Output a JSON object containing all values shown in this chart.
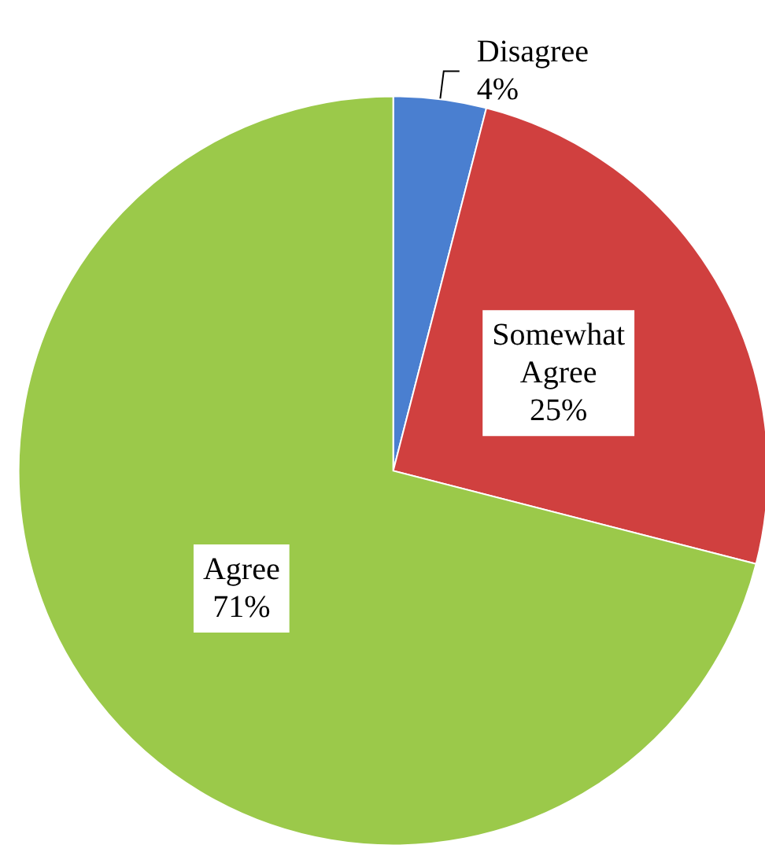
{
  "chart_data": {
    "type": "pie",
    "categories": [
      "Disagree",
      "Somewhat Agree",
      "Agree"
    ],
    "values": [
      4,
      25,
      71
    ],
    "colors": [
      "#4a7fd0",
      "#d0403f",
      "#9bc94a"
    ],
    "value_labels": [
      "4%",
      "25%",
      "71%"
    ]
  }
}
